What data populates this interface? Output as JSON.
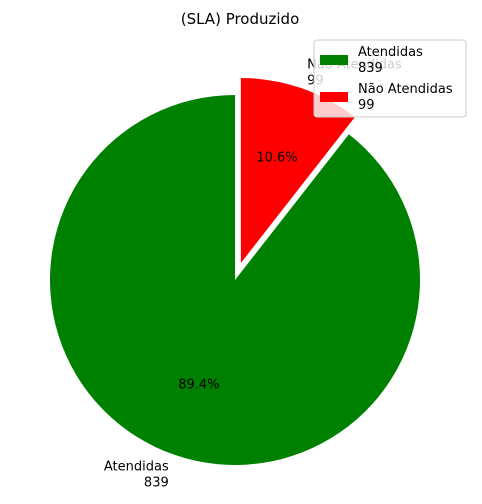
{
  "chart_data": {
    "type": "pie",
    "title": "(SLA) Produzido",
    "slices": [
      {
        "label": "Atendidas",
        "count": "839",
        "value": 839,
        "percent": "89.4%",
        "color": "#008000"
      },
      {
        "label": "Não Atendidas",
        "count": "99",
        "value": 99,
        "percent": "10.6%",
        "color": "#ff0000"
      }
    ],
    "legend": {
      "placement": "top-right",
      "entries": [
        {
          "label": "Atendidas",
          "count": "839",
          "color": "#008000"
        },
        {
          "label": "Não Atendidas",
          "count": "99",
          "color": "#ff0000"
        }
      ]
    }
  }
}
